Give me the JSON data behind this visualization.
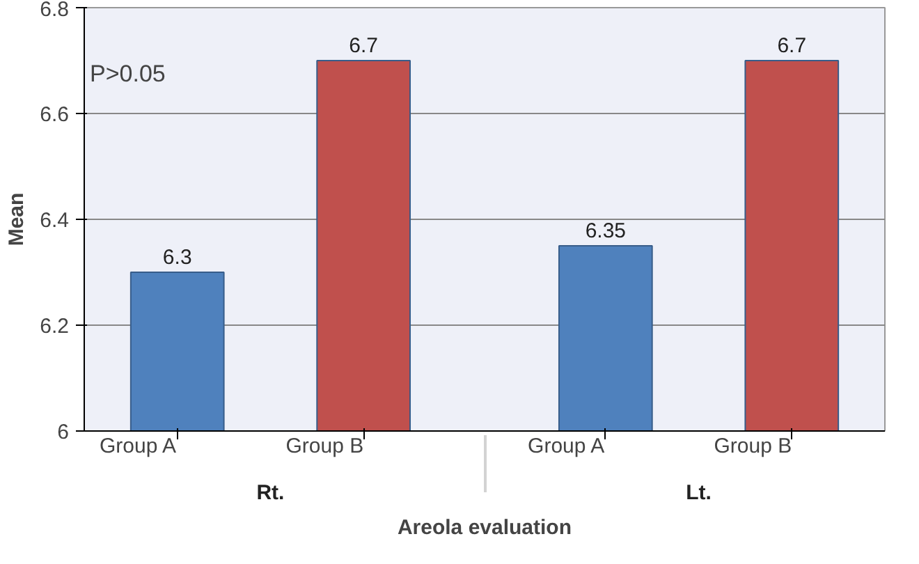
{
  "chart_data": {
    "type": "bar",
    "xlabel": "Areola evaluation",
    "ylabel": "Mean",
    "categories": [
      "Rt.",
      "Lt."
    ],
    "series": [
      {
        "name": "Group A",
        "color": "#4f81bd",
        "values": [
          6.3,
          6.35
        ]
      },
      {
        "name": "Group B",
        "color": "#c0504d",
        "values": [
          6.7,
          6.7
        ]
      }
    ],
    "ylim": [
      6,
      6.8
    ],
    "yticks": [
      6,
      6.2,
      6.4,
      6.6,
      6.8
    ],
    "grid": "y",
    "data_labels": true,
    "annotations": [
      "P>0.05"
    ]
  }
}
